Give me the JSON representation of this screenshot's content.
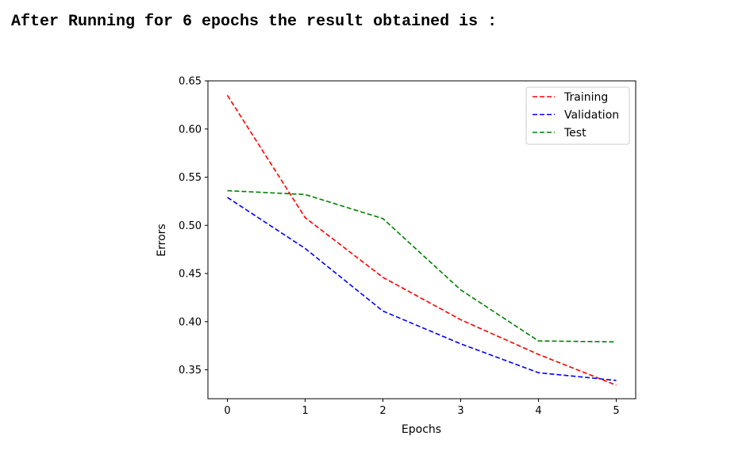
{
  "page": {
    "heading": "After Running for 6 epochs the result obtained is :"
  },
  "chart_data": {
    "type": "line",
    "title": "",
    "xlabel": "Epochs",
    "ylabel": "Errors",
    "x": [
      0,
      1,
      2,
      3,
      4,
      5
    ],
    "xlim": [
      -0.25,
      5.25
    ],
    "ylim": [
      0.32,
      0.65
    ],
    "xticks": [
      "0",
      "1",
      "2",
      "3",
      "4",
      "5"
    ],
    "yticks": [
      "0.35",
      "0.40",
      "0.45",
      "0.50",
      "0.55",
      "0.60",
      "0.65"
    ],
    "grid": false,
    "legend_position": "top-right",
    "line_style": "dashed",
    "series": [
      {
        "name": "Training",
        "color": "#ff0000",
        "values": [
          0.635,
          0.508,
          0.446,
          0.402,
          0.366,
          0.334
        ]
      },
      {
        "name": "Validation",
        "color": "#0000ff",
        "values": [
          0.529,
          0.476,
          0.411,
          0.377,
          0.347,
          0.339
        ]
      },
      {
        "name": "Test",
        "color": "#008000",
        "values": [
          0.536,
          0.532,
          0.507,
          0.433,
          0.38,
          0.379
        ]
      }
    ]
  }
}
